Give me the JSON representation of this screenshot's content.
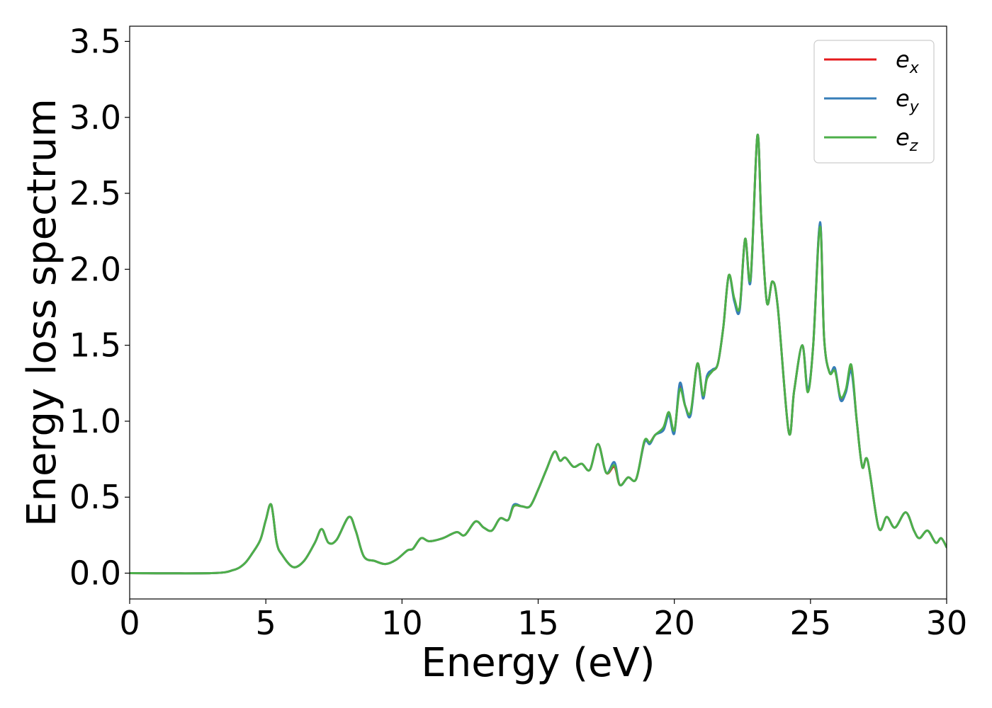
{
  "chart_data": {
    "type": "line",
    "title": "",
    "xlabel": "Energy (eV)",
    "ylabel": "Energy loss spectrum",
    "xlim": [
      0,
      30
    ],
    "ylim": [
      -0.17,
      3.6
    ],
    "xticks": [
      0,
      5,
      10,
      15,
      20,
      25,
      30
    ],
    "xtick_labels": [
      "0",
      "5",
      "10",
      "15",
      "20",
      "25",
      "30"
    ],
    "yticks": [
      0.0,
      0.5,
      1.0,
      1.5,
      2.0,
      2.5,
      3.0,
      3.5
    ],
    "ytick_labels": [
      "0.0",
      "0.5",
      "1.0",
      "1.5",
      "2.0",
      "2.5",
      "3.0",
      "3.5"
    ],
    "grid": false,
    "legend_position": "top-right",
    "legend": [
      {
        "base": "e",
        "sub": "x",
        "color": "#e41a1c"
      },
      {
        "base": "e",
        "sub": "y",
        "color": "#377eb8"
      },
      {
        "base": "e",
        "sub": "z",
        "color": "#4daf4a"
      }
    ],
    "series": [
      {
        "name": "e_x",
        "color": "#e41a1c",
        "x": [
          0,
          3,
          3.8,
          4.2,
          4.5,
          4.8,
          5.0,
          5.2,
          5.4,
          5.6,
          6.0,
          6.4,
          6.8,
          7.05,
          7.3,
          7.6,
          8.05,
          8.3,
          8.6,
          9.0,
          9.4,
          9.8,
          10.2,
          10.4,
          10.7,
          11.0,
          11.5,
          12.0,
          12.3,
          12.7,
          13.0,
          13.3,
          13.6,
          13.9,
          14.1,
          14.4,
          14.7,
          15.0,
          15.3,
          15.6,
          15.8,
          16.0,
          16.3,
          16.6,
          16.9,
          17.2,
          17.5,
          17.8,
          18.0,
          18.3,
          18.6,
          18.9,
          19.1,
          19.3,
          19.6,
          19.8,
          20.0,
          20.2,
          20.4,
          20.6,
          20.85,
          21.05,
          21.2,
          21.4,
          21.6,
          21.8,
          22.0,
          22.2,
          22.4,
          22.6,
          22.8,
          23.05,
          23.2,
          23.4,
          23.6,
          23.8,
          24.2,
          24.4,
          24.7,
          24.9,
          25.1,
          25.35,
          25.5,
          25.7,
          25.9,
          26.1,
          26.3,
          26.5,
          26.7,
          26.9,
          27.1,
          27.5,
          27.8,
          28.1,
          28.5,
          28.8,
          29.0,
          29.3,
          29.6,
          29.8,
          30.0
        ],
        "y": [
          0.0,
          0.0,
          0.02,
          0.06,
          0.13,
          0.22,
          0.35,
          0.45,
          0.2,
          0.12,
          0.04,
          0.08,
          0.2,
          0.29,
          0.2,
          0.22,
          0.37,
          0.28,
          0.11,
          0.08,
          0.06,
          0.09,
          0.15,
          0.16,
          0.23,
          0.21,
          0.23,
          0.27,
          0.25,
          0.34,
          0.3,
          0.28,
          0.36,
          0.35,
          0.44,
          0.44,
          0.44,
          0.55,
          0.68,
          0.8,
          0.74,
          0.76,
          0.7,
          0.72,
          0.68,
          0.85,
          0.66,
          0.7,
          0.58,
          0.63,
          0.62,
          0.86,
          0.86,
          0.91,
          0.95,
          1.05,
          0.93,
          1.23,
          1.1,
          1.05,
          1.38,
          1.16,
          1.29,
          1.33,
          1.38,
          1.62,
          1.96,
          1.8,
          1.74,
          2.2,
          1.93,
          2.88,
          2.3,
          1.78,
          1.92,
          1.75,
          0.93,
          1.2,
          1.5,
          1.2,
          1.5,
          2.3,
          1.55,
          1.32,
          1.34,
          1.15,
          1.2,
          1.35,
          1.0,
          0.7,
          0.74,
          0.3,
          0.37,
          0.3,
          0.4,
          0.28,
          0.23,
          0.28,
          0.2,
          0.23,
          0.17
        ]
      },
      {
        "name": "e_y",
        "color": "#377eb8",
        "x": [
          0,
          3,
          3.8,
          4.2,
          4.5,
          4.8,
          5.0,
          5.2,
          5.4,
          5.6,
          6.0,
          6.4,
          6.8,
          7.05,
          7.3,
          7.6,
          8.05,
          8.3,
          8.6,
          9.0,
          9.4,
          9.8,
          10.2,
          10.4,
          10.7,
          11.0,
          11.5,
          12.0,
          12.3,
          12.7,
          13.0,
          13.3,
          13.6,
          13.9,
          14.1,
          14.4,
          14.7,
          15.0,
          15.3,
          15.6,
          15.8,
          16.0,
          16.3,
          16.6,
          16.9,
          17.2,
          17.5,
          17.8,
          18.0,
          18.3,
          18.6,
          18.9,
          19.1,
          19.3,
          19.6,
          19.8,
          20.0,
          20.2,
          20.4,
          20.6,
          20.85,
          21.05,
          21.2,
          21.4,
          21.6,
          21.8,
          22.0,
          22.2,
          22.4,
          22.6,
          22.8,
          23.05,
          23.2,
          23.4,
          23.6,
          23.8,
          24.2,
          24.4,
          24.7,
          24.9,
          25.1,
          25.35,
          25.5,
          25.7,
          25.9,
          26.1,
          26.3,
          26.5,
          26.7,
          26.9,
          27.1,
          27.5,
          27.8,
          28.1,
          28.5,
          28.8,
          29.0,
          29.3,
          29.6,
          29.8,
          30.0
        ],
        "y": [
          0.0,
          0.0,
          0.02,
          0.06,
          0.13,
          0.22,
          0.35,
          0.45,
          0.2,
          0.12,
          0.04,
          0.08,
          0.2,
          0.29,
          0.2,
          0.22,
          0.37,
          0.28,
          0.11,
          0.08,
          0.06,
          0.09,
          0.15,
          0.16,
          0.23,
          0.21,
          0.23,
          0.27,
          0.25,
          0.34,
          0.3,
          0.28,
          0.36,
          0.35,
          0.45,
          0.44,
          0.44,
          0.55,
          0.68,
          0.8,
          0.74,
          0.76,
          0.7,
          0.72,
          0.68,
          0.85,
          0.66,
          0.73,
          0.58,
          0.63,
          0.62,
          0.86,
          0.85,
          0.91,
          0.94,
          1.04,
          0.92,
          1.25,
          1.1,
          1.04,
          1.38,
          1.15,
          1.3,
          1.34,
          1.38,
          1.62,
          1.96,
          1.79,
          1.73,
          2.2,
          1.92,
          2.88,
          2.3,
          1.78,
          1.92,
          1.75,
          0.93,
          1.2,
          1.5,
          1.21,
          1.5,
          2.31,
          1.55,
          1.32,
          1.35,
          1.14,
          1.19,
          1.33,
          1.0,
          0.7,
          0.74,
          0.3,
          0.37,
          0.3,
          0.4,
          0.28,
          0.23,
          0.28,
          0.2,
          0.23,
          0.17
        ]
      },
      {
        "name": "e_z",
        "color": "#4daf4a",
        "x": [
          0,
          3,
          3.8,
          4.2,
          4.5,
          4.8,
          5.0,
          5.2,
          5.4,
          5.6,
          6.0,
          6.4,
          6.8,
          7.05,
          7.3,
          7.6,
          8.05,
          8.3,
          8.6,
          9.0,
          9.4,
          9.8,
          10.2,
          10.4,
          10.7,
          11.0,
          11.5,
          12.0,
          12.3,
          12.7,
          13.0,
          13.3,
          13.6,
          13.9,
          14.1,
          14.4,
          14.7,
          15.0,
          15.3,
          15.6,
          15.8,
          16.0,
          16.3,
          16.6,
          16.9,
          17.2,
          17.5,
          17.8,
          18.0,
          18.3,
          18.6,
          18.9,
          19.1,
          19.3,
          19.6,
          19.8,
          20.0,
          20.2,
          20.4,
          20.6,
          20.85,
          21.05,
          21.2,
          21.4,
          21.6,
          21.8,
          22.0,
          22.2,
          22.4,
          22.6,
          22.8,
          23.05,
          23.2,
          23.4,
          23.6,
          23.8,
          24.2,
          24.4,
          24.7,
          24.9,
          25.1,
          25.35,
          25.5,
          25.7,
          25.9,
          26.1,
          26.3,
          26.5,
          26.7,
          26.9,
          27.1,
          27.5,
          27.8,
          28.1,
          28.5,
          28.8,
          29.0,
          29.3,
          29.6,
          29.8,
          30.0
        ],
        "y": [
          0.0,
          0.0,
          0.02,
          0.06,
          0.13,
          0.22,
          0.35,
          0.45,
          0.2,
          0.12,
          0.04,
          0.08,
          0.2,
          0.29,
          0.2,
          0.22,
          0.37,
          0.28,
          0.11,
          0.08,
          0.06,
          0.09,
          0.15,
          0.16,
          0.23,
          0.21,
          0.23,
          0.27,
          0.25,
          0.34,
          0.3,
          0.28,
          0.36,
          0.35,
          0.44,
          0.44,
          0.44,
          0.55,
          0.68,
          0.8,
          0.74,
          0.76,
          0.7,
          0.72,
          0.68,
          0.85,
          0.66,
          0.71,
          0.58,
          0.63,
          0.62,
          0.87,
          0.86,
          0.91,
          0.96,
          1.06,
          0.94,
          1.21,
          1.1,
          1.06,
          1.38,
          1.17,
          1.28,
          1.33,
          1.38,
          1.62,
          1.96,
          1.81,
          1.75,
          2.2,
          1.94,
          2.88,
          2.3,
          1.78,
          1.92,
          1.75,
          0.93,
          1.2,
          1.5,
          1.19,
          1.5,
          2.28,
          1.55,
          1.32,
          1.33,
          1.16,
          1.21,
          1.37,
          1.0,
          0.7,
          0.74,
          0.3,
          0.37,
          0.3,
          0.4,
          0.28,
          0.23,
          0.28,
          0.2,
          0.23,
          0.17
        ]
      }
    ]
  }
}
